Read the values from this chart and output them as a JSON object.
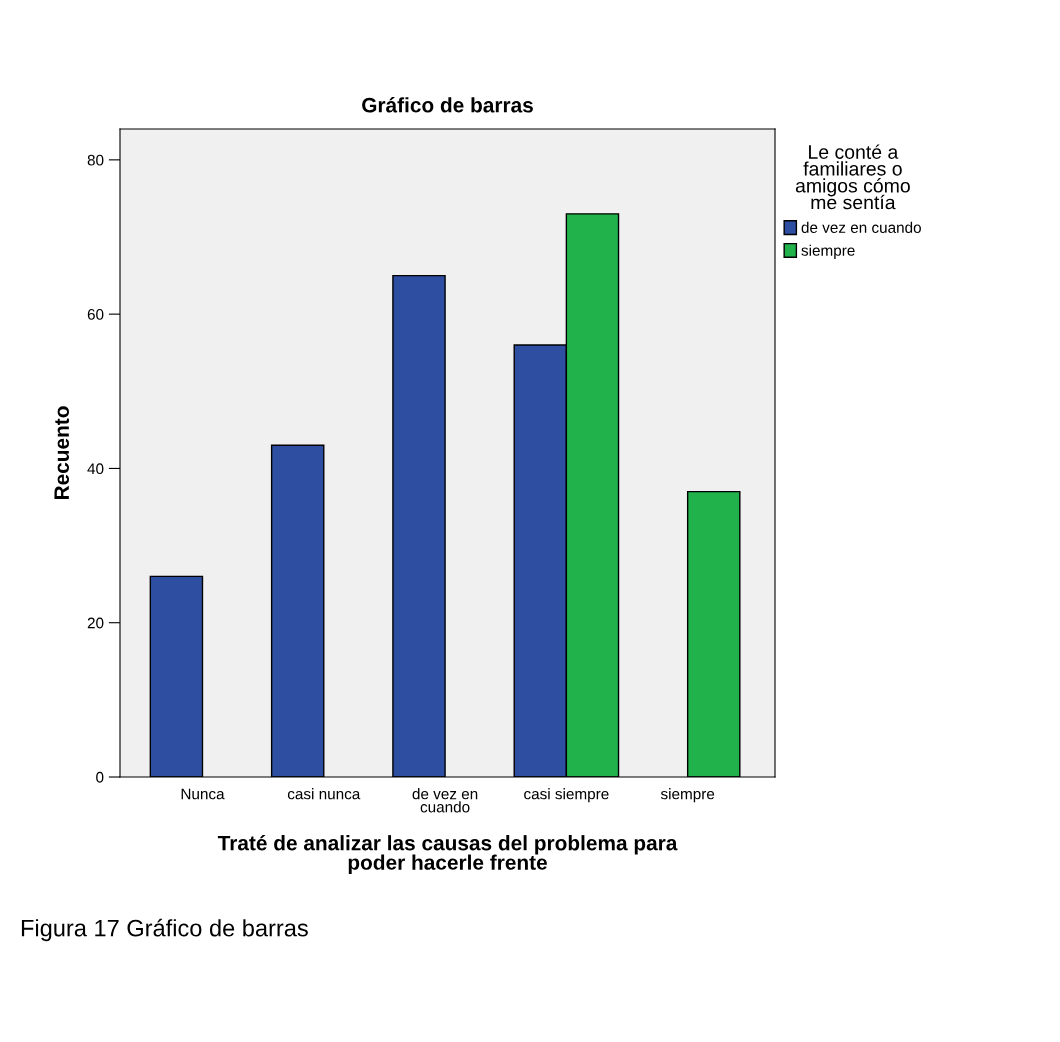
{
  "chart_data": {
    "type": "bar",
    "title": "Gráfico de barras",
    "xlabel": "Traté de analizar las causas del problema para\npoder hacerle frente",
    "ylabel": "Recuento",
    "legend_title": "Le conté a\nfamiliares o\namigos cómo\nme sentía",
    "categories": [
      "Nunca",
      "casi nunca",
      "de vez en\ncuando",
      "casi siempre",
      "siempre"
    ],
    "series": [
      {
        "name": "de vez en cuando",
        "color": "#2e4fa1",
        "values": [
          26,
          43,
          65,
          56,
          null
        ]
      },
      {
        "name": "siempre",
        "color": "#21b24c",
        "values": [
          null,
          null,
          null,
          73,
          37
        ]
      }
    ],
    "ylim": [
      0,
      84
    ],
    "yticks": [
      0,
      20,
      40,
      60,
      80
    ],
    "grid": false,
    "legend": "top right",
    "annotations": [
      "Figura 17 Gráfico de barras"
    ]
  }
}
